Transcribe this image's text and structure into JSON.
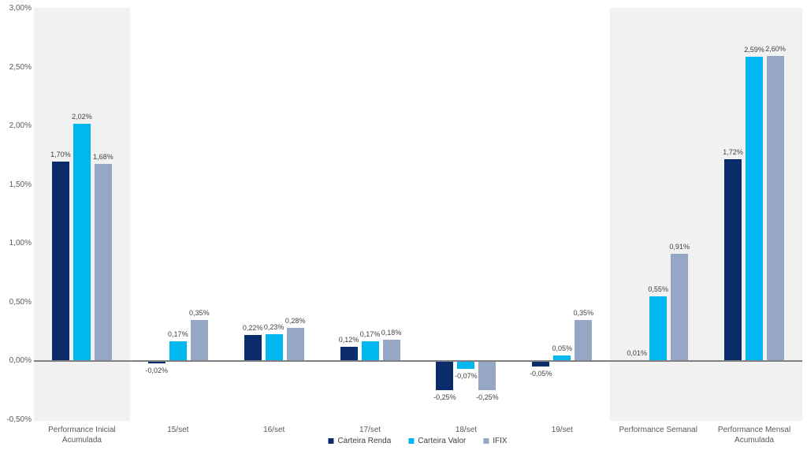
{
  "chart_data": {
    "type": "bar",
    "title": "",
    "xlabel": "",
    "ylabel": "",
    "y_axis": {
      "min": -0.5,
      "max": 3.0,
      "step": 0.5,
      "tick_labels": [
        "3,00%",
        "2,50%",
        "2,00%",
        "1,50%",
        "1,00%",
        "0,50%",
        "0,00%",
        "-0,50%"
      ],
      "grid": false
    },
    "categories": [
      {
        "lines": [
          "Performance Inicial",
          "Acumulada"
        ],
        "highlighted": true
      },
      {
        "lines": [
          "15/set"
        ],
        "highlighted": false
      },
      {
        "lines": [
          "16/set"
        ],
        "highlighted": false
      },
      {
        "lines": [
          "17/set"
        ],
        "highlighted": false
      },
      {
        "lines": [
          "18/set"
        ],
        "highlighted": false
      },
      {
        "lines": [
          "19/set"
        ],
        "highlighted": false
      },
      {
        "lines": [
          "Performance Semanal"
        ],
        "highlighted": true
      },
      {
        "lines": [
          "Performance Mensal",
          "Acumulada"
        ],
        "highlighted": true
      }
    ],
    "series": [
      {
        "name": "Carteira Renda",
        "color": "#0b2c6b",
        "values": [
          1.7,
          -0.02,
          0.22,
          0.12,
          -0.25,
          -0.05,
          0.01,
          1.72
        ],
        "labels": [
          "1,70%",
          "-0,02%",
          "0,22%",
          "0,12%",
          "-0,25%",
          "-0,05%",
          "0,01%",
          "1,72%"
        ]
      },
      {
        "name": "Carteira Valor",
        "color": "#00b7ef",
        "values": [
          2.02,
          0.17,
          0.23,
          0.17,
          -0.07,
          0.05,
          0.55,
          2.59
        ],
        "labels": [
          "2,02%",
          "0,17%",
          "0,23%",
          "0,17%",
          "-0,07%",
          "0,05%",
          "0,55%",
          "2,59%"
        ]
      },
      {
        "name": "IFIX",
        "color": "#95a7c4",
        "values": [
          1.68,
          0.35,
          0.28,
          0.18,
          -0.25,
          0.35,
          0.91,
          2.6
        ],
        "labels": [
          "1,68%",
          "0,35%",
          "0,28%",
          "0,18%",
          "-0,25%",
          "0,35%",
          "0,91%",
          "2,60%"
        ]
      }
    ],
    "legend": {
      "position": "bottom",
      "entries": [
        "Carteira Renda",
        "Carteira Valor",
        "IFIX"
      ]
    },
    "colors": {
      "highlight_panel": "#f1f1f1",
      "axis_line": "#808080",
      "tick_text": "#595959",
      "data_label_text": "#3f3f3f"
    }
  }
}
